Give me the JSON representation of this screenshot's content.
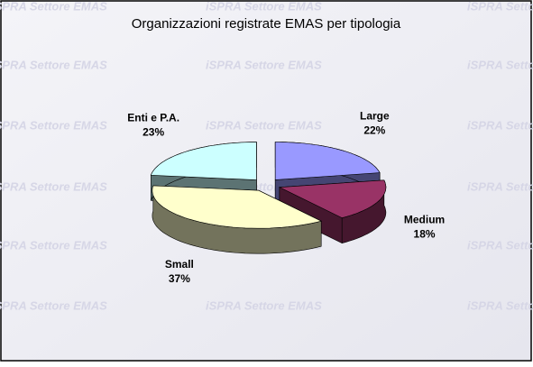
{
  "chart_data": {
    "type": "pie3d",
    "title": "Organizzazioni registrate EMAS per tipologia",
    "watermark": "iSPRA Settore EMAS",
    "categories": [
      "Large",
      "Medium",
      "Small",
      "Enti e P.A."
    ],
    "values": [
      22,
      18,
      37,
      23
    ],
    "value_labels": [
      "22%",
      "18%",
      "37%",
      "23%"
    ],
    "colors": [
      "#9999ff",
      "#993366",
      "#ffffcc",
      "#ccffff"
    ]
  }
}
